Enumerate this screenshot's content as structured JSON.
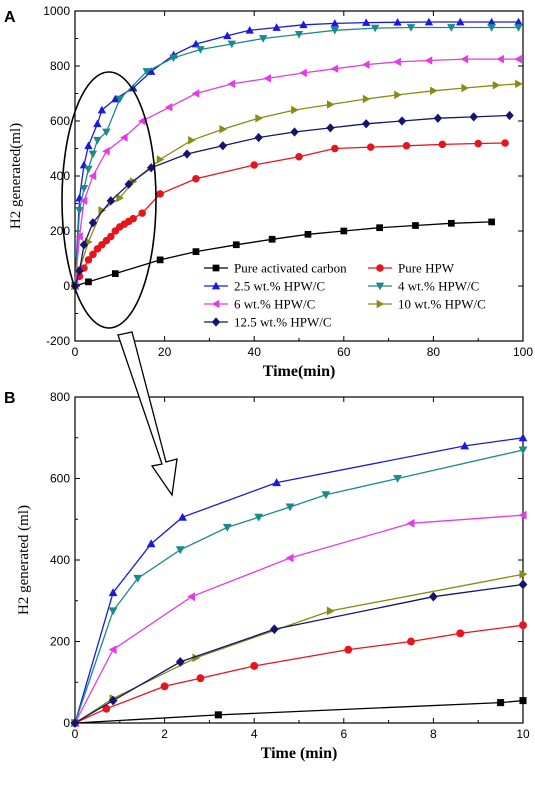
{
  "chart_data": [
    {
      "panel_label": "A",
      "type": "line",
      "xlabel": "Time(min)",
      "ylabel": "H2 generated(ml)",
      "xlim": [
        0,
        100
      ],
      "ylim": [
        -200,
        1000
      ],
      "xticks": [
        "0",
        "20",
        "40",
        "60",
        "80",
        "100"
      ],
      "yticks": [
        "-200",
        "0",
        "200",
        "400",
        "600",
        "800",
        "1000"
      ],
      "legend_position": "bottom-left",
      "series": [
        {
          "name": "Pure activated carbon",
          "color": "#000000",
          "marker": "square",
          "x": [
            0,
            3,
            9,
            19,
            27,
            36,
            44,
            52,
            60,
            68,
            76,
            84,
            93
          ],
          "y": [
            0,
            15,
            45,
            95,
            125,
            150,
            170,
            188,
            200,
            212,
            220,
            228,
            233
          ]
        },
        {
          "name": "Pure HPW",
          "color": "#e8141c",
          "marker": "circle",
          "x": [
            0,
            1,
            2,
            3,
            4,
            5,
            6,
            7,
            8,
            9,
            10,
            11,
            12,
            13,
            15,
            19,
            27,
            40,
            50,
            58,
            66,
            74,
            82,
            90,
            96
          ],
          "y": [
            0,
            35,
            65,
            95,
            115,
            135,
            150,
            165,
            180,
            200,
            215,
            225,
            235,
            245,
            265,
            335,
            390,
            440,
            470,
            500,
            505,
            510,
            515,
            518,
            520
          ]
        },
        {
          "name": "2.5 wt.% HPW/C",
          "color": "#1a1adc",
          "marker": "triangle-up",
          "x": [
            0,
            1,
            2,
            3,
            5,
            6,
            9,
            13,
            17,
            22,
            27,
            34,
            39,
            45,
            51,
            58,
            65,
            72,
            79,
            86,
            93,
            99
          ],
          "y": [
            0,
            320,
            440,
            510,
            590,
            640,
            680,
            720,
            780,
            840,
            880,
            910,
            930,
            940,
            950,
            955,
            958,
            959,
            960,
            960,
            960,
            960
          ]
        },
        {
          "name": "4 wt.% HPW/C",
          "color": "#1a8a8a",
          "marker": "triangle-down",
          "x": [
            0,
            1,
            2,
            3,
            4,
            5,
            7,
            10,
            16,
            22,
            28,
            35,
            42,
            50,
            58,
            67,
            75,
            84,
            93,
            99
          ],
          "y": [
            0,
            275,
            355,
            425,
            480,
            530,
            560,
            680,
            780,
            830,
            860,
            880,
            900,
            915,
            930,
            938,
            940,
            940,
            940,
            940
          ]
        },
        {
          "name": "6 wt.% HPW/C",
          "color": "#e43ce4",
          "marker": "triangle-left",
          "x": [
            0,
            1,
            2,
            4,
            7,
            11,
            15,
            21,
            27,
            35,
            43,
            51,
            58,
            65,
            72,
            79,
            87,
            95,
            99
          ],
          "y": [
            0,
            180,
            310,
            400,
            490,
            540,
            600,
            650,
            700,
            735,
            755,
            775,
            790,
            805,
            815,
            820,
            825,
            825,
            825
          ]
        },
        {
          "name": "10 wt.% HPW/C",
          "color": "#8a8a14",
          "marker": "triangle-right",
          "x": [
            0,
            1,
            3,
            6,
            10,
            13,
            19,
            26,
            33,
            41,
            49,
            57,
            65,
            72,
            80,
            87,
            94,
            99
          ],
          "y": [
            0,
            60,
            160,
            275,
            320,
            380,
            460,
            530,
            570,
            610,
            640,
            660,
            680,
            695,
            710,
            720,
            730,
            735
          ]
        },
        {
          "name": "12.5 wt.% HPW/C",
          "color": "#14146e",
          "marker": "diamond",
          "x": [
            0,
            1,
            2,
            4,
            8,
            12,
            17,
            25,
            33,
            41,
            49,
            57,
            65,
            73,
            81,
            89,
            97
          ],
          "y": [
            0,
            55,
            150,
            230,
            310,
            370,
            430,
            480,
            510,
            540,
            560,
            575,
            590,
            600,
            610,
            615,
            620
          ]
        }
      ]
    },
    {
      "panel_label": "B",
      "type": "line",
      "xlabel": "Time (min)",
      "ylabel": "H2 generated (ml)",
      "xlim": [
        0,
        10
      ],
      "ylim": [
        0,
        800
      ],
      "xticks": [
        "0",
        "2",
        "4",
        "6",
        "8",
        "10"
      ],
      "yticks": [
        "0",
        "200",
        "400",
        "600",
        "800"
      ],
      "series": [
        {
          "name": "Pure activated carbon",
          "color": "#000000",
          "marker": "square",
          "x": [
            0,
            3.2,
            9.5,
            10
          ],
          "y": [
            0,
            20,
            50,
            55
          ]
        },
        {
          "name": "Pure HPW",
          "color": "#e8141c",
          "marker": "circle",
          "x": [
            0,
            0.7,
            2,
            2.8,
            4,
            6.1,
            7.5,
            8.6,
            10
          ],
          "y": [
            0,
            35,
            90,
            110,
            140,
            180,
            200,
            220,
            240
          ]
        },
        {
          "name": "2.5 wt.% HPW/C",
          "color": "#1a1adc",
          "marker": "triangle-up",
          "x": [
            0,
            0.85,
            1.7,
            2.4,
            4.5,
            8.7,
            10
          ],
          "y": [
            0,
            320,
            440,
            505,
            590,
            680,
            700
          ]
        },
        {
          "name": "4 wt.% HPW/C",
          "color": "#1a8a8a",
          "marker": "triangle-down",
          "x": [
            0,
            0.85,
            1.4,
            2.35,
            3.4,
            4.1,
            4.8,
            5.6,
            7.2,
            10
          ],
          "y": [
            0,
            275,
            355,
            425,
            480,
            505,
            530,
            560,
            600,
            670
          ]
        },
        {
          "name": "6 wt.% HPW/C",
          "color": "#e43ce4",
          "marker": "triangle-left",
          "x": [
            0,
            0.85,
            2.6,
            4.8,
            7.5,
            10
          ],
          "y": [
            0,
            180,
            310,
            405,
            490,
            510
          ]
        },
        {
          "name": "10 wt.% HPW/C",
          "color": "#8a8a14",
          "marker": "triangle-right",
          "x": [
            0,
            0.85,
            2.7,
            5.7,
            10
          ],
          "y": [
            0,
            60,
            160,
            275,
            365
          ]
        },
        {
          "name": "12.5 wt.% HPW/C",
          "color": "#14146e",
          "marker": "diamond",
          "x": [
            0,
            0.85,
            2.35,
            4.45,
            8.0,
            10
          ],
          "y": [
            0,
            55,
            150,
            230,
            310,
            340
          ]
        }
      ]
    }
  ]
}
